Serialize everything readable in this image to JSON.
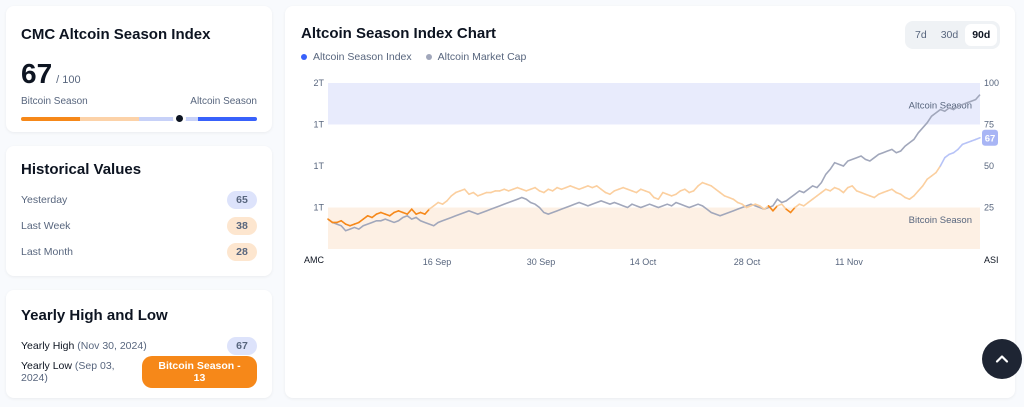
{
  "index_card": {
    "title": "CMC Altcoin Season Index",
    "value": "67",
    "max": "/ 100",
    "bitcoin_label": "Bitcoin Season",
    "altcoin_label": "Altcoin Season",
    "current_fraction": 0.67
  },
  "historical": {
    "title": "Historical Values",
    "rows": [
      {
        "label": "Yesterday",
        "value": "65",
        "tone": "blue"
      },
      {
        "label": "Last Week",
        "value": "38",
        "tone": "orange"
      },
      {
        "label": "Last Month",
        "value": "28",
        "tone": "orange"
      }
    ]
  },
  "yearly": {
    "title": "Yearly High and Low",
    "high_label": "Yearly High",
    "high_date": "(Nov 30, 2024)",
    "high_value": "67",
    "low_label": "Yearly Low",
    "low_date": "(Sep 03, 2024)",
    "low_value": "Bitcoin Season - 13"
  },
  "chart": {
    "title": "Altcoin Season Index Chart",
    "tabs": [
      "7d",
      "30d",
      "90d"
    ],
    "active_tab": "90d",
    "scroll_icon": "chevron-up-icon",
    "colors": {
      "index": "#3861fb",
      "index_orange": "#f68819",
      "market_cap": "#a1a7bb",
      "altcoin_zone": "#e8ebfc",
      "bitcoin_zone": "#fdf0e4",
      "badge": "#a8b5f5"
    }
  },
  "chart_data": {
    "type": "line",
    "title": "Altcoin Season Index Chart",
    "legend": [
      "Altcoin Season Index",
      "Altcoin Market Cap"
    ],
    "x_ticks": [
      "16 Sep",
      "30 Sep",
      "14 Oct",
      "28 Oct",
      "11 Nov"
    ],
    "left_axis_label": "AMC",
    "right_axis_label": "ASI",
    "left_ticks": [
      "2T",
      "1T",
      "1T",
      "1T"
    ],
    "right_ticks": [
      100,
      75,
      50,
      25
    ],
    "right_ylim": [
      0,
      100
    ],
    "zones": [
      {
        "label": "Altcoin Season",
        "from": 75,
        "to": 100
      },
      {
        "label": "Bitcoin Season",
        "from": 0,
        "to": 25
      }
    ],
    "current_badge": "67",
    "series": [
      {
        "name": "Altcoin Season Index",
        "values": [
          18,
          16,
          16,
          17,
          15,
          14,
          15,
          16,
          18,
          20,
          19,
          21,
          22,
          21,
          20,
          22,
          23,
          22,
          21,
          24,
          21,
          22,
          21,
          24,
          26,
          28,
          27,
          29,
          32,
          34,
          35,
          36,
          33,
          34,
          32,
          33,
          34,
          34,
          35,
          35,
          36,
          35,
          36,
          37,
          36,
          35,
          36,
          37,
          35,
          34,
          36,
          35,
          37,
          36,
          37,
          38,
          37,
          36,
          37,
          38,
          37,
          38,
          36,
          34,
          33,
          35,
          36,
          37,
          36,
          35,
          34,
          36,
          35,
          34,
          31,
          30,
          34,
          33,
          32,
          33,
          35,
          36,
          34,
          35,
          38,
          40,
          39,
          38,
          36,
          34,
          32,
          31,
          30,
          28,
          27,
          25,
          26,
          27,
          26,
          24,
          26,
          23,
          26,
          27,
          24,
          22,
          25,
          27,
          26,
          28,
          30,
          32,
          34,
          36,
          35,
          37,
          36,
          34,
          37,
          38,
          35,
          34,
          33,
          32,
          31,
          33,
          34,
          35,
          36,
          34,
          33,
          31,
          30,
          32,
          35,
          38,
          42,
          44,
          46,
          50,
          55,
          57,
          58,
          60,
          63,
          64,
          65,
          66,
          67
        ]
      },
      {
        "name": "Altcoin Market Cap",
        "values": [
          18,
          16,
          15,
          14,
          11,
          12,
          13,
          12,
          14,
          15,
          16,
          17,
          17,
          18,
          17,
          16,
          17,
          19,
          20,
          18,
          19,
          17,
          16,
          15,
          14,
          16,
          17,
          18,
          19,
          20,
          21,
          22,
          23,
          22,
          21,
          22,
          23,
          24,
          25,
          26,
          27,
          28,
          29,
          30,
          31,
          30,
          28,
          27,
          25,
          22,
          21,
          22,
          23,
          24,
          25,
          26,
          27,
          28,
          27,
          26,
          27,
          28,
          29,
          28,
          27,
          28,
          27,
          26,
          25,
          27,
          26,
          25,
          26,
          27,
          26,
          25,
          26,
          27,
          26,
          28,
          27,
          26,
          25,
          26,
          27,
          26,
          24,
          22,
          21,
          20,
          21,
          22,
          23,
          24,
          25,
          26,
          27,
          26,
          25,
          24,
          25,
          26,
          30,
          28,
          29,
          31,
          33,
          35,
          34,
          36,
          38,
          37,
          40,
          45,
          48,
          52,
          51,
          50,
          53,
          54,
          55,
          56,
          54,
          53,
          55,
          57,
          58,
          59,
          60,
          58,
          59,
          62,
          64,
          66,
          70,
          73,
          76,
          80,
          82,
          84,
          83,
          85,
          84,
          86,
          87,
          88,
          89,
          90,
          93
        ]
      }
    ]
  }
}
